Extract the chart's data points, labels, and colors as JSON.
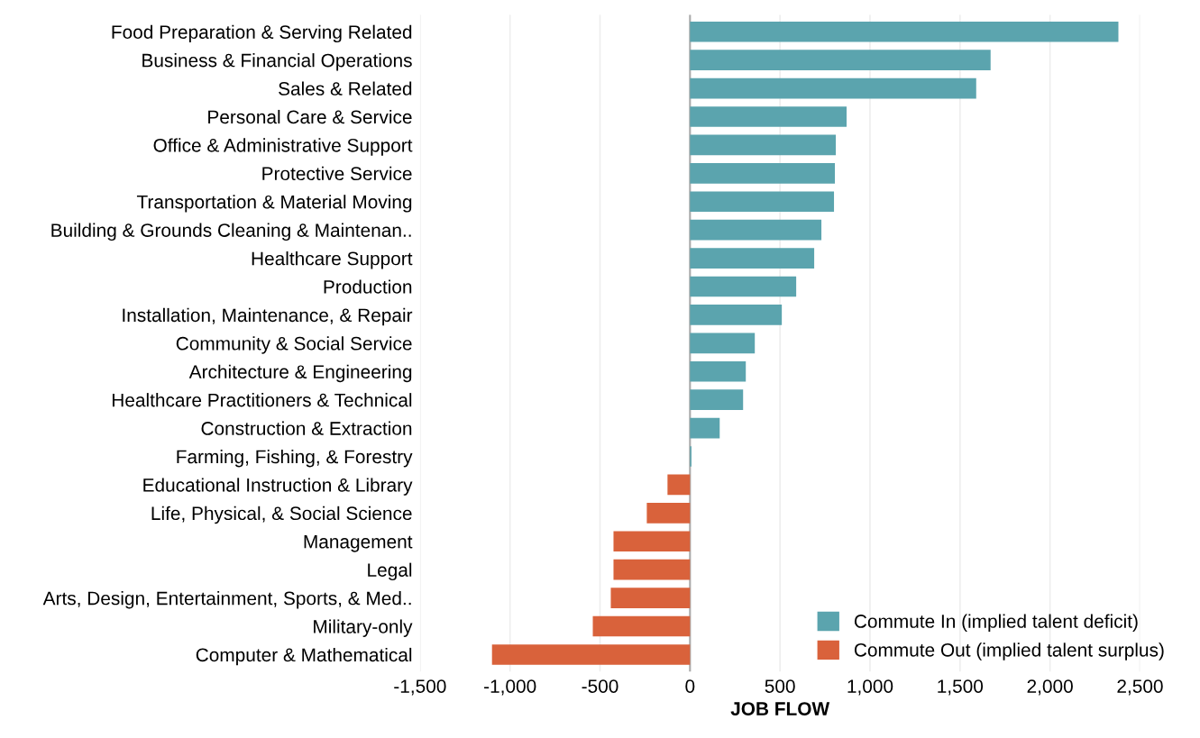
{
  "chart_data": {
    "type": "bar",
    "orientation": "horizontal",
    "xlabel": "JOB FLOW",
    "categories": [
      "Food Preparation & Serving Related",
      "Business & Financial Operations",
      "Sales & Related",
      "Personal Care & Service",
      "Office & Administrative Support",
      "Protective Service",
      "Transportation & Material Moving",
      "Building & Grounds Cleaning & Maintenan..",
      "Healthcare Support",
      "Production",
      "Installation, Maintenance, & Repair",
      "Community & Social Service",
      "Architecture & Engineering",
      "Healthcare Practitioners & Technical",
      "Construction & Extraction",
      "Farming, Fishing, & Forestry",
      "Educational Instruction & Library",
      "Life, Physical, & Social Science",
      "Management",
      "Legal",
      "Arts, Design, Entertainment, Sports, & Med..",
      "Military-only",
      "Computer & Mathematical"
    ],
    "series": [
      {
        "name": "Commute In (implied talent deficit)",
        "color": "#5ba4ae",
        "values": [
          2380,
          1670,
          1590,
          870,
          810,
          805,
          800,
          730,
          690,
          590,
          510,
          360,
          310,
          295,
          165,
          8,
          null,
          null,
          null,
          null,
          null,
          null,
          null
        ]
      },
      {
        "name": "Commute Out (implied talent surplus)",
        "color": "#d9623b",
        "values": [
          null,
          null,
          null,
          null,
          null,
          null,
          null,
          null,
          null,
          null,
          null,
          null,
          null,
          null,
          null,
          null,
          -125,
          -240,
          -425,
          -425,
          -440,
          -540,
          -1100
        ]
      }
    ],
    "xlim": [
      -1500,
      2500
    ],
    "xticks": [
      {
        "value": -1500,
        "label": "-1,500"
      },
      {
        "value": -1000,
        "label": "-1,000"
      },
      {
        "value": -500,
        "label": "-500"
      },
      0,
      500,
      {
        "value": 1000,
        "label": "1,000"
      },
      {
        "value": 1500,
        "label": "1,500"
      },
      {
        "value": 2000,
        "label": "2,000"
      },
      {
        "value": 2500,
        "label": "2,500"
      }
    ],
    "grid": "x",
    "legend": "bottom right"
  }
}
